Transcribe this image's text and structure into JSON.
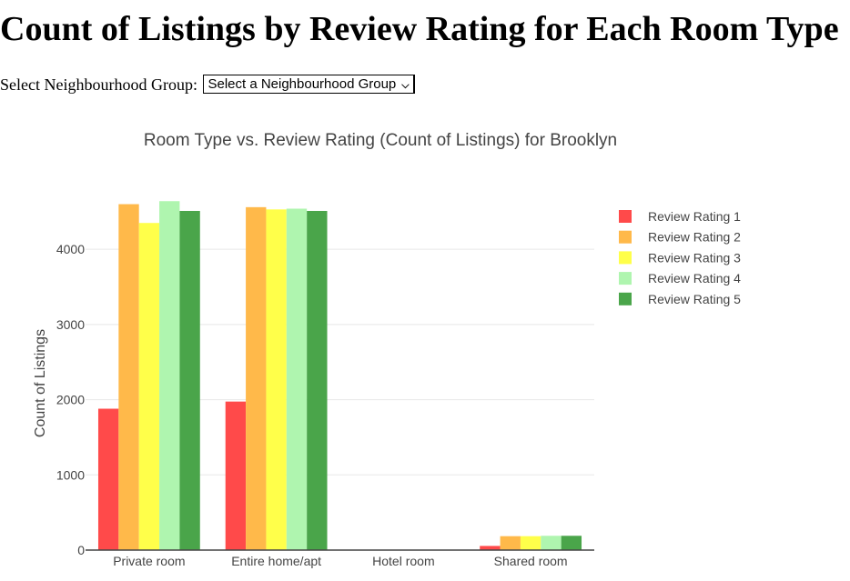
{
  "page": {
    "title": "Count of Listings by Review Rating for Each Room Type"
  },
  "filter": {
    "label": "Select Neighbourhood Group:",
    "selected": "Select a Neighbourhood Group",
    "icon": "chevron-down-icon"
  },
  "chart_data": {
    "type": "bar",
    "title": "Room Type vs. Review Rating (Count of Listings) for Brooklyn",
    "xlabel": "",
    "ylabel": "Count of Listings",
    "ylim": [
      0,
      4800
    ],
    "yticks": [
      0,
      1000,
      2000,
      3000,
      4000
    ],
    "grid": true,
    "legend_position": "right",
    "categories": [
      "Private room",
      "Entire home/apt",
      "Hotel room",
      "Shared room"
    ],
    "series": [
      {
        "name": "Review Rating 1",
        "color": "#ff4a4a",
        "values": [
          1880,
          1975,
          3,
          55
        ]
      },
      {
        "name": "Review Rating 2",
        "color": "#ffb94a",
        "values": [
          4600,
          4560,
          4,
          185
        ]
      },
      {
        "name": "Review Rating 3",
        "color": "#ffff4a",
        "values": [
          4350,
          4530,
          4,
          185
        ]
      },
      {
        "name": "Review Rating 4",
        "color": "#aff5af",
        "values": [
          4640,
          4540,
          4,
          190
        ]
      },
      {
        "name": "Review Rating 5",
        "color": "#4aa54a",
        "values": [
          4510,
          4510,
          4,
          190
        ]
      }
    ]
  }
}
